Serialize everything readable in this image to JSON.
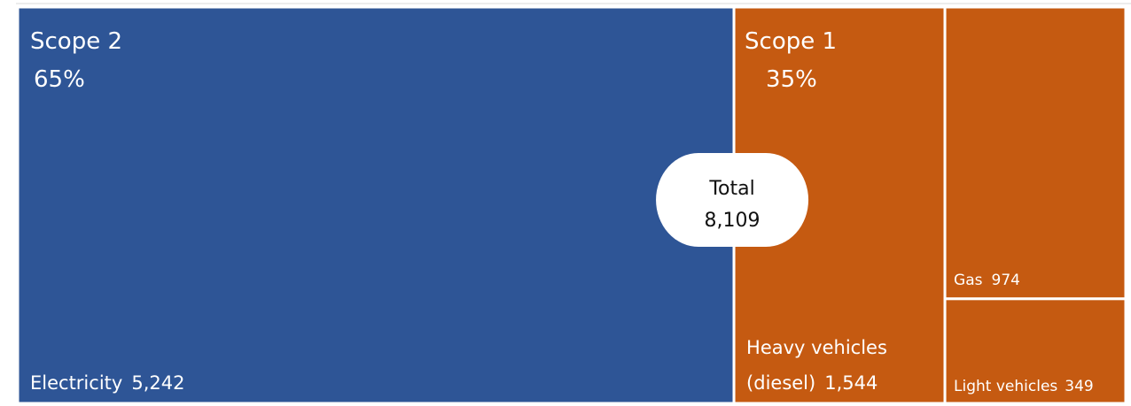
{
  "chart_data": {
    "type": "treemap",
    "colors": {
      "scope2": "#2e5596",
      "scope1": "#c55a11",
      "border": "#ffffff"
    },
    "total": {
      "label": "Total",
      "value": "8,109",
      "numeric": 8109
    },
    "groups": [
      {
        "id": "scope2",
        "name": "Scope 2",
        "percent_label": "65%",
        "items": [
          {
            "id": "electricity",
            "label": "Electricity",
            "value_label": "5,242",
            "value": 5242
          }
        ]
      },
      {
        "id": "scope1",
        "name": "Scope 1",
        "percent_label": "35%",
        "items": [
          {
            "id": "heavy",
            "label_lines": [
              "Heavy vehicles",
              "(diesel)"
            ],
            "value_label": "1,544",
            "value": 1544
          },
          {
            "id": "gas",
            "label": "Gas",
            "value_label": "974",
            "value": 974
          },
          {
            "id": "light",
            "label": "Light vehicles",
            "value_label": "349",
            "value": 349
          }
        ]
      }
    ]
  }
}
